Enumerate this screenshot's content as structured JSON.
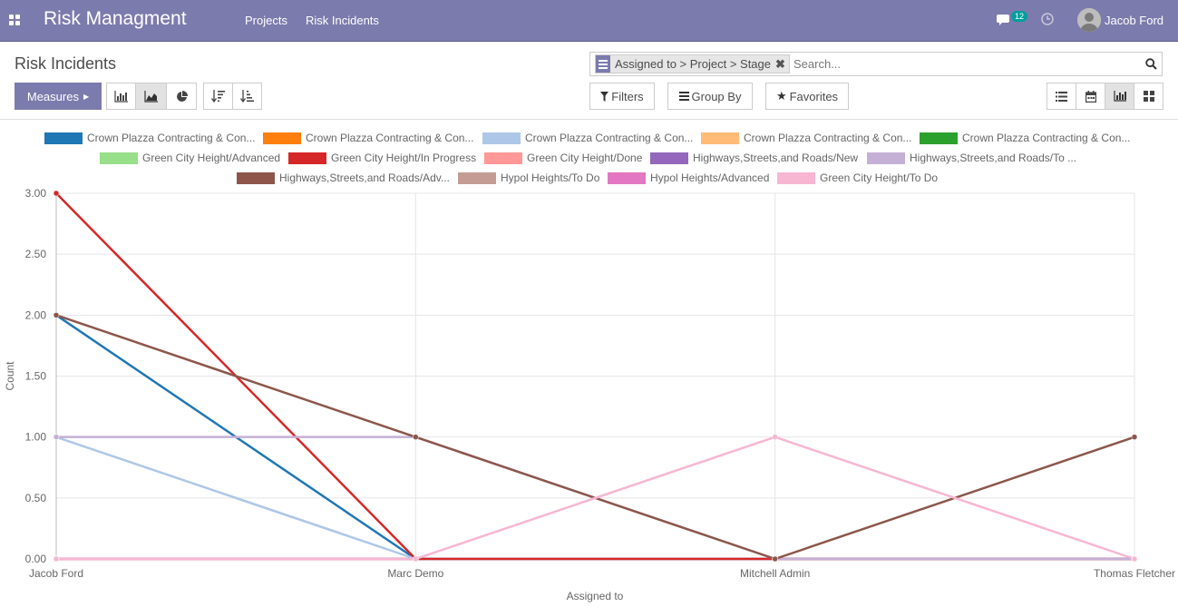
{
  "navbar": {
    "brand": "Risk Managment",
    "menu": [
      "Projects",
      "Risk Incidents"
    ],
    "message_count": "12",
    "user_name": "Jacob Ford"
  },
  "control_panel": {
    "title": "Risk Incidents",
    "search_facet": "Assigned to > Project > Stage",
    "search_placeholder": "Search...",
    "measures_label": "Measures",
    "filters_label": "Filters",
    "groupby_label": "Group By",
    "favorites_label": "Favorites"
  },
  "colors": {
    "navbar": "#7c7bad",
    "primary_button": "#7c7bad"
  },
  "chart_data": {
    "type": "line",
    "xlabel": "Assigned to",
    "ylabel": "Count",
    "categories": [
      "Jacob Ford",
      "Marc Demo",
      "Mitchell Admin",
      "Thomas Fletcher"
    ],
    "ylim": [
      0,
      3
    ],
    "yticks": [
      "0.00",
      "0.50",
      "1.00",
      "1.50",
      "2.00",
      "2.50",
      "3.00"
    ],
    "grid": true,
    "legend_position": "top",
    "series": [
      {
        "name": "Crown Plazza Contracting & Con...",
        "color": "#1f77b4",
        "values": [
          2,
          0,
          0,
          0
        ]
      },
      {
        "name": "Crown Plazza Contracting & Con...",
        "color": "#ff7f0e",
        "values": [
          0,
          0,
          0,
          0
        ]
      },
      {
        "name": "Crown Plazza Contracting & Con...",
        "color": "#aec7e8",
        "values": [
          1,
          0,
          0,
          0
        ]
      },
      {
        "name": "Crown Plazza Contracting & Con...",
        "color": "#ffbb78",
        "values": [
          0,
          0,
          0,
          0
        ]
      },
      {
        "name": "Crown Plazza Contracting & Con...",
        "color": "#2ca02c",
        "values": [
          0,
          0,
          0,
          0
        ]
      },
      {
        "name": "Green City Height/Advanced",
        "color": "#98df8a",
        "values": [
          0,
          0,
          0,
          0
        ]
      },
      {
        "name": "Green City Height/In Progress",
        "color": "#d62728",
        "values": [
          3,
          0,
          0,
          0
        ]
      },
      {
        "name": "Green City Height/Done",
        "color": "#ff9896",
        "values": [
          0,
          0,
          0,
          0
        ]
      },
      {
        "name": "Highways,Streets,and Roads/New",
        "color": "#9467bd",
        "values": [
          0,
          0,
          0,
          0
        ]
      },
      {
        "name": "Highways,Streets,and Roads/To ...",
        "color": "#c5b0d5",
        "values": [
          1,
          1,
          0,
          0
        ]
      },
      {
        "name": "Highways,Streets,and Roads/Adv...",
        "color": "#8c564b",
        "values": [
          2,
          1,
          0,
          1
        ]
      },
      {
        "name": "Hypol Heights/To Do",
        "color": "#c49c94",
        "values": [
          0,
          0,
          0,
          0
        ]
      },
      {
        "name": "Hypol Heights/Advanced",
        "color": "#e377c2",
        "values": [
          0,
          0,
          0,
          0
        ]
      },
      {
        "name": "Green City Height/To Do",
        "color": "#f7b6d2",
        "values": [
          0,
          0,
          1,
          0
        ]
      }
    ]
  }
}
